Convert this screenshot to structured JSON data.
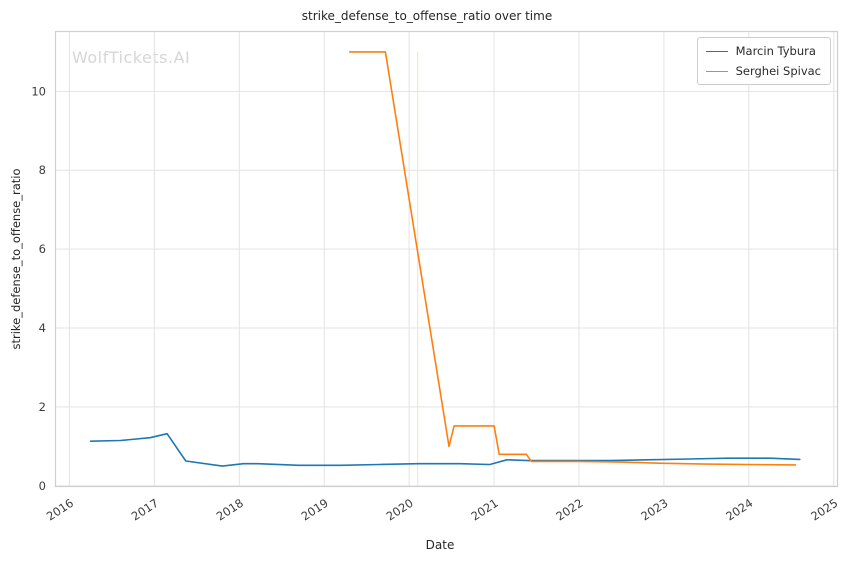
{
  "watermark": "WolfTickets.AI",
  "chart_data": {
    "type": "line",
    "title": "strike_defense_to_offense_ratio over time",
    "xlabel": "Date",
    "ylabel": "strike_defense_to_offense_ratio",
    "xlim": [
      2015.83,
      2025.05
    ],
    "ylim": [
      -0.03,
      11.53
    ],
    "xticks": [
      2016,
      2017,
      2018,
      2019,
      2020,
      2021,
      2022,
      2023,
      2024,
      2025
    ],
    "yticks": [
      0,
      2,
      4,
      6,
      8,
      10
    ],
    "grid": true,
    "legend_position": "upper right",
    "colors": {
      "grid": "#e3e3e3",
      "spine": "#cfcfcf",
      "tick_label": "#3d3d3d",
      "title": "#262626",
      "watermark": "#d6d6d6"
    },
    "vline": {
      "x": 2020.1,
      "color": "#ffdcbc",
      "y0": 0.0,
      "y1": 11.0
    },
    "series": [
      {
        "name": "Marcin Tybura",
        "color": "#1f77b4",
        "points": [
          [
            2016.25,
            1.13
          ],
          [
            2016.6,
            1.15
          ],
          [
            2016.95,
            1.22
          ],
          [
            2017.15,
            1.32
          ],
          [
            2017.37,
            0.63
          ],
          [
            2017.8,
            0.5
          ],
          [
            2018.05,
            0.56
          ],
          [
            2018.22,
            0.56
          ],
          [
            2018.7,
            0.52
          ],
          [
            2019.2,
            0.52
          ],
          [
            2019.65,
            0.54
          ],
          [
            2020.1,
            0.56
          ],
          [
            2020.6,
            0.56
          ],
          [
            2020.95,
            0.54
          ],
          [
            2021.15,
            0.66
          ],
          [
            2021.4,
            0.64
          ],
          [
            2021.9,
            0.64
          ],
          [
            2022.35,
            0.64
          ],
          [
            2022.8,
            0.66
          ],
          [
            2023.3,
            0.68
          ],
          [
            2023.75,
            0.7
          ],
          [
            2024.25,
            0.7
          ],
          [
            2024.6,
            0.67
          ]
        ]
      },
      {
        "name": "Serghei Spivac",
        "color": "#ff7f0e",
        "points": [
          [
            2019.3,
            11.0
          ],
          [
            2019.72,
            11.0
          ],
          [
            2020.47,
            1.0
          ],
          [
            2020.53,
            1.52
          ],
          [
            2021.0,
            1.52
          ],
          [
            2021.06,
            0.8
          ],
          [
            2021.38,
            0.8
          ],
          [
            2021.44,
            0.62
          ],
          [
            2022.0,
            0.62
          ],
          [
            2022.5,
            0.6
          ],
          [
            2023.0,
            0.57
          ],
          [
            2023.5,
            0.55
          ],
          [
            2024.0,
            0.54
          ],
          [
            2024.55,
            0.53
          ]
        ]
      }
    ]
  }
}
